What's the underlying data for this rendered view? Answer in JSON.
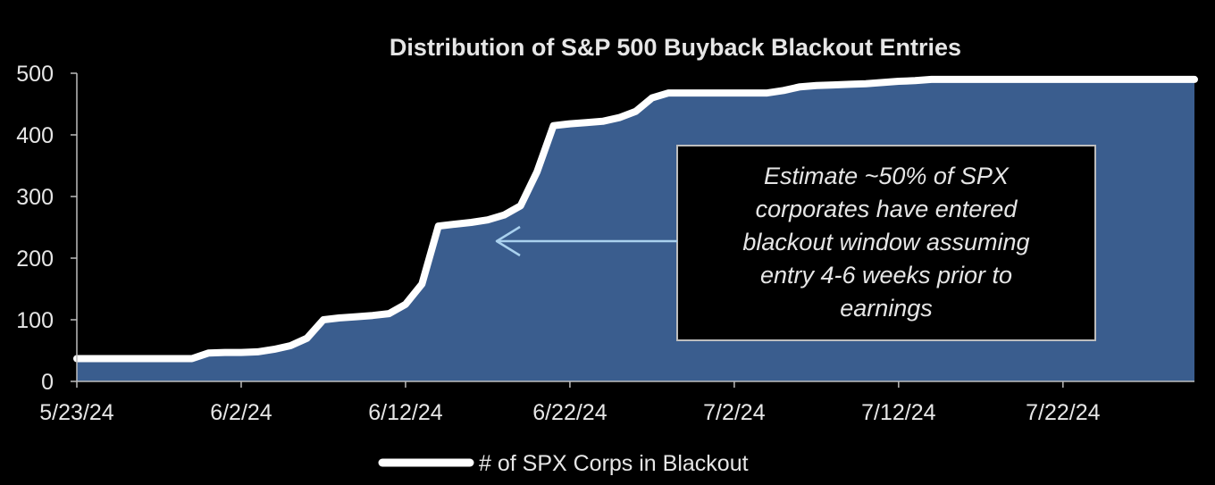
{
  "chart_data": {
    "type": "area",
    "title": "Distribution of S&P 500 Buyback Blackout Entries",
    "xlabel": "",
    "ylabel": "",
    "ylim": [
      0,
      500
    ],
    "y_ticks": [
      0,
      100,
      200,
      300,
      400,
      500
    ],
    "x_ticks": [
      "5/23/24",
      "6/2/24",
      "6/12/24",
      "6/22/24",
      "7/2/24",
      "7/12/24",
      "7/22/24"
    ],
    "x_range": [
      "5/23/24",
      "7/30/24"
    ],
    "grid": false,
    "legend_position": "bottom",
    "series": [
      {
        "name": "# of SPX Corps in Blackout",
        "x": [
          "5/23/24",
          "5/24/24",
          "5/25/24",
          "5/26/24",
          "5/27/24",
          "5/28/24",
          "5/29/24",
          "5/30/24",
          "5/31/24",
          "6/1/24",
          "6/2/24",
          "6/3/24",
          "6/4/24",
          "6/5/24",
          "6/6/24",
          "6/7/24",
          "6/8/24",
          "6/9/24",
          "6/10/24",
          "6/11/24",
          "6/12/24",
          "6/13/24",
          "6/14/24",
          "6/15/24",
          "6/16/24",
          "6/17/24",
          "6/18/24",
          "6/19/24",
          "6/20/24",
          "6/21/24",
          "6/22/24",
          "6/23/24",
          "6/24/24",
          "6/25/24",
          "6/26/24",
          "6/27/24",
          "6/28/24",
          "6/29/24",
          "6/30/24",
          "7/1/24",
          "7/2/24",
          "7/3/24",
          "7/4/24",
          "7/5/24",
          "7/6/24",
          "7/7/24",
          "7/8/24",
          "7/9/24",
          "7/10/24",
          "7/11/24",
          "7/12/24",
          "7/13/24",
          "7/14/24",
          "7/15/24",
          "7/16/24",
          "7/17/24",
          "7/18/24",
          "7/19/24",
          "7/20/24",
          "7/21/24",
          "7/22/24",
          "7/23/24",
          "7/24/24",
          "7/25/24",
          "7/26/24",
          "7/27/24",
          "7/28/24",
          "7/29/24",
          "7/30/24"
        ],
        "values": [
          37,
          37,
          37,
          37,
          37,
          37,
          37,
          37,
          46,
          47,
          47,
          48,
          52,
          58,
          70,
          100,
          103,
          105,
          107,
          110,
          125,
          158,
          252,
          255,
          258,
          262,
          270,
          285,
          340,
          415,
          418,
          420,
          422,
          428,
          438,
          460,
          468,
          468,
          468,
          468,
          468,
          468,
          468,
          472,
          478,
          480,
          481,
          482,
          483,
          485,
          487,
          488,
          490,
          490,
          490,
          490,
          490,
          490,
          490,
          490,
          490,
          490,
          490,
          490,
          490,
          490,
          490,
          490,
          490
        ]
      }
    ],
    "annotation": {
      "lines": [
        "Estimate ~50% of SPX",
        "corporates have entered",
        "blackout window assuming",
        "entry 4-6 weeks prior to",
        "earnings"
      ]
    },
    "colors": {
      "background": "#000000",
      "area_fill": "#3a5d8e",
      "line": "#ffffff",
      "axis": "#bdbdbd",
      "text": "#e6e6e6",
      "arrow": "#a9d1ee",
      "annotation_box_border": "#bdbdbd"
    }
  }
}
